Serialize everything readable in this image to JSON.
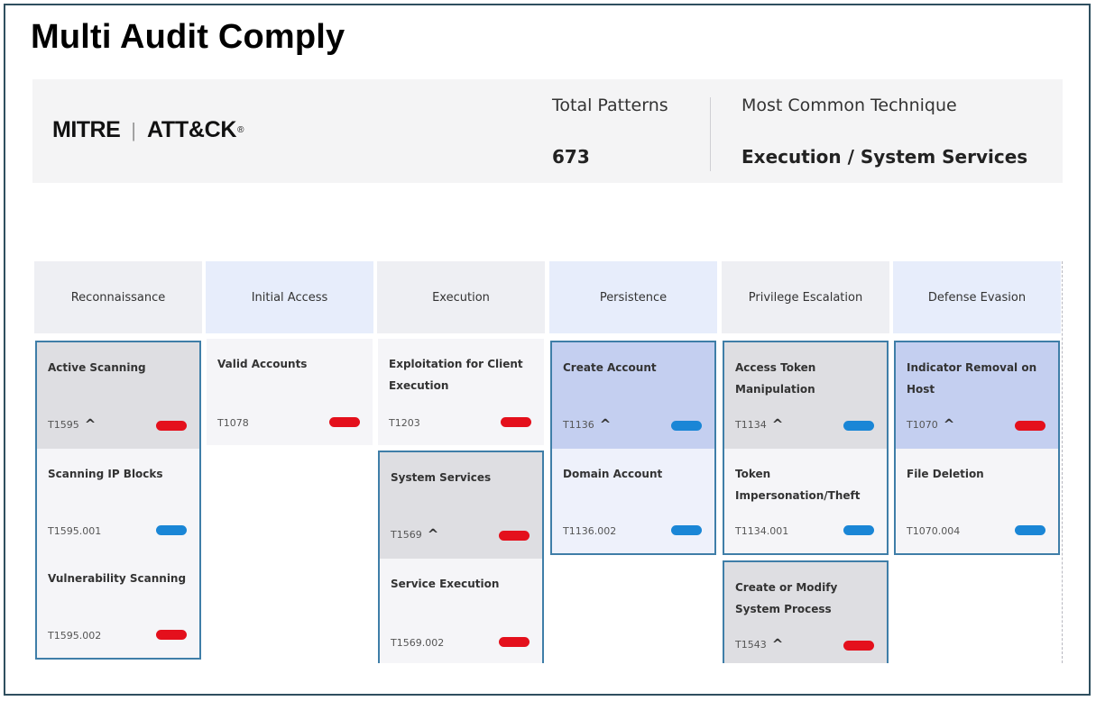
{
  "app_title": "Multi Audit Comply",
  "brand": {
    "left": "MITRE",
    "separator": "|",
    "right": "ATT&CK",
    "mark": "®"
  },
  "stats": {
    "total_label": "Total Patterns",
    "total_value": "673",
    "common_label": "Most Common Technique",
    "common_value": "Execution / System Services"
  },
  "colors": {
    "red": "#e4101c",
    "blue": "#1a86d6",
    "outline": "#3f7ea8"
  },
  "tactics": [
    {
      "name": "Reconnaissance",
      "techniques": [
        {
          "name": "Active Scanning",
          "id": "T1595",
          "expandable": true,
          "status": "red"
        },
        {
          "name": "Scanning IP Blocks",
          "id": "T1595.001",
          "status": "blue"
        },
        {
          "name": "Vulnerability Scanning",
          "id": "T1595.002",
          "status": "red"
        }
      ]
    },
    {
      "name": "Initial Access",
      "techniques": [
        {
          "name": "Valid Accounts",
          "id": "T1078",
          "status": "red"
        }
      ]
    },
    {
      "name": "Execution",
      "techniques": [
        {
          "name": "Exploitation for Client Execution",
          "id": "T1203",
          "status": "red"
        },
        {
          "name": "System Services",
          "id": "T1569",
          "expandable": true,
          "status": "red"
        },
        {
          "name": "Service Execution",
          "id": "T1569.002",
          "status": "red"
        }
      ]
    },
    {
      "name": "Persistence",
      "techniques": [
        {
          "name": "Create Account",
          "id": "T1136",
          "expandable": true,
          "status": "blue"
        },
        {
          "name": "Domain Account",
          "id": "T1136.002",
          "status": "blue"
        }
      ]
    },
    {
      "name": "Privilege Escalation",
      "techniques": [
        {
          "name": "Access Token Manipulation",
          "id": "T1134",
          "expandable": true,
          "status": "blue"
        },
        {
          "name": "Token Impersonation/Theft",
          "id": "T1134.001",
          "status": "blue"
        },
        {
          "name": "Create or Modify System Process",
          "id": "T1543",
          "expandable": true,
          "status": "red"
        }
      ]
    },
    {
      "name": "Defense Evasion",
      "techniques": [
        {
          "name": "Indicator Removal on Host",
          "id": "T1070",
          "expandable": true,
          "status": "red"
        },
        {
          "name": "File Deletion",
          "id": "T1070.004",
          "status": "blue"
        }
      ]
    }
  ]
}
